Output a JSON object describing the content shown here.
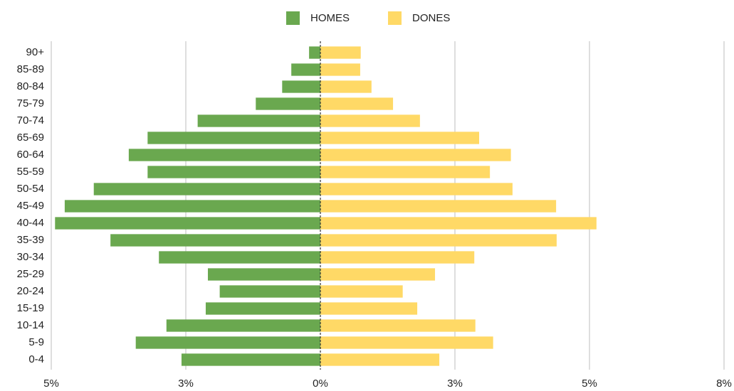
{
  "chart_data": {
    "type": "bar",
    "orientation": "horizontal",
    "categories": [
      "90+",
      "85-89",
      "80-84",
      "75-79",
      "70-74",
      "65-69",
      "60-64",
      "55-59",
      "50-54",
      "45-49",
      "40-44",
      "35-39",
      "30-34",
      "25-29",
      "20-24",
      "15-19",
      "10-14",
      "5-9",
      "0-4"
    ],
    "series": [
      {
        "name": "HOMES",
        "color": "#6aa84f",
        "values": [
          -0.21,
          -0.54,
          -0.71,
          -1.2,
          -2.28,
          -3.21,
          -3.56,
          -3.21,
          -4.21,
          -4.75,
          -4.93,
          -3.9,
          -3.0,
          -2.09,
          -1.87,
          -2.13,
          -2.86,
          -3.43,
          -2.58
        ]
      },
      {
        "name": "DONES",
        "color": "#ffd966",
        "values": [
          0.75,
          0.74,
          0.95,
          1.35,
          1.85,
          2.95,
          3.54,
          3.15,
          3.57,
          4.38,
          5.13,
          4.39,
          2.86,
          2.13,
          1.53,
          1.8,
          2.88,
          3.21,
          2.21
        ]
      }
    ],
    "xlim": [
      -5,
      7.5
    ],
    "xticks": [
      {
        "value": -5,
        "label": "5%"
      },
      {
        "value": -2.5,
        "label": "3%"
      },
      {
        "value": 0,
        "label": "0%"
      },
      {
        "value": 2.5,
        "label": "3%"
      },
      {
        "value": 5,
        "label": "5%"
      },
      {
        "value": 7.5,
        "label": "8%"
      }
    ],
    "grid": true,
    "legend": "top"
  }
}
